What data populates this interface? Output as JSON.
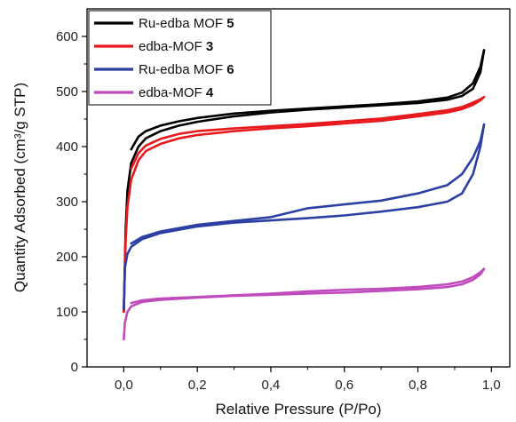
{
  "chart_data": {
    "type": "line",
    "xlabel": "Relative Pressure (P/Po)",
    "ylabel": "Quantity Adsorbed (cm³/g STP)",
    "xlim": [
      -0.1,
      1.05
    ],
    "ylim": [
      0,
      650
    ],
    "x_ticks": [
      0.0,
      0.2,
      0.4,
      0.6,
      0.8,
      1.0
    ],
    "x_tick_labels": [
      "0,0",
      "0,2",
      "0,4",
      "0,6",
      "0,8",
      "1,0"
    ],
    "y_ticks": [
      0,
      100,
      200,
      300,
      400,
      500,
      600
    ],
    "y_tick_labels": [
      "0",
      "100",
      "200",
      "300",
      "400",
      "500",
      "600"
    ],
    "legend_position": "top-left",
    "grid": false,
    "series": [
      {
        "name": "Ru-edba MOF",
        "label_number": "5",
        "color": "#000000",
        "adsorption": [
          [
            0.0,
            100
          ],
          [
            0.005,
            250
          ],
          [
            0.01,
            320
          ],
          [
            0.02,
            370
          ],
          [
            0.04,
            400
          ],
          [
            0.06,
            415
          ],
          [
            0.1,
            428
          ],
          [
            0.15,
            438
          ],
          [
            0.2,
            445
          ],
          [
            0.3,
            455
          ],
          [
            0.4,
            462
          ],
          [
            0.5,
            467
          ],
          [
            0.6,
            471
          ],
          [
            0.7,
            475
          ],
          [
            0.8,
            479
          ],
          [
            0.88,
            485
          ],
          [
            0.92,
            492
          ],
          [
            0.95,
            505
          ],
          [
            0.97,
            535
          ],
          [
            0.98,
            575
          ]
        ],
        "desorption": [
          [
            0.98,
            575
          ],
          [
            0.97,
            545
          ],
          [
            0.95,
            515
          ],
          [
            0.92,
            498
          ],
          [
            0.88,
            489
          ],
          [
            0.8,
            482
          ],
          [
            0.7,
            477
          ],
          [
            0.6,
            473
          ],
          [
            0.5,
            469
          ],
          [
            0.4,
            465
          ],
          [
            0.3,
            460
          ],
          [
            0.2,
            452
          ],
          [
            0.15,
            446
          ],
          [
            0.1,
            438
          ],
          [
            0.06,
            428
          ],
          [
            0.04,
            418
          ],
          [
            0.02,
            395
          ]
        ]
      },
      {
        "name": "edba-MOF",
        "label_number": "3",
        "color": "#e8191c",
        "adsorption": [
          [
            0.0,
            100
          ],
          [
            0.005,
            230
          ],
          [
            0.01,
            290
          ],
          [
            0.02,
            340
          ],
          [
            0.04,
            375
          ],
          [
            0.06,
            392
          ],
          [
            0.1,
            405
          ],
          [
            0.15,
            415
          ],
          [
            0.2,
            421
          ],
          [
            0.3,
            428
          ],
          [
            0.4,
            433
          ],
          [
            0.5,
            437
          ],
          [
            0.6,
            442
          ],
          [
            0.7,
            447
          ],
          [
            0.8,
            455
          ],
          [
            0.88,
            462
          ],
          [
            0.92,
            468
          ],
          [
            0.95,
            476
          ],
          [
            0.97,
            484
          ],
          [
            0.98,
            490
          ]
        ],
        "desorption": [
          [
            0.98,
            490
          ],
          [
            0.97,
            486
          ],
          [
            0.95,
            480
          ],
          [
            0.92,
            472
          ],
          [
            0.88,
            466
          ],
          [
            0.8,
            459
          ],
          [
            0.7,
            451
          ],
          [
            0.6,
            446
          ],
          [
            0.5,
            441
          ],
          [
            0.4,
            437
          ],
          [
            0.3,
            433
          ],
          [
            0.2,
            428
          ],
          [
            0.15,
            423
          ],
          [
            0.1,
            414
          ],
          [
            0.06,
            402
          ],
          [
            0.04,
            388
          ],
          [
            0.02,
            360
          ]
        ]
      },
      {
        "name": "Ru-edba MOF",
        "label_number": "6",
        "color": "#2c3fa3",
        "adsorption": [
          [
            0.0,
            105
          ],
          [
            0.003,
            180
          ],
          [
            0.01,
            205
          ],
          [
            0.02,
            218
          ],
          [
            0.05,
            232
          ],
          [
            0.1,
            243
          ],
          [
            0.2,
            255
          ],
          [
            0.3,
            262
          ],
          [
            0.4,
            266
          ],
          [
            0.5,
            270
          ],
          [
            0.6,
            275
          ],
          [
            0.7,
            282
          ],
          [
            0.8,
            290
          ],
          [
            0.88,
            300
          ],
          [
            0.92,
            315
          ],
          [
            0.95,
            350
          ],
          [
            0.97,
            400
          ],
          [
            0.98,
            440
          ]
        ],
        "desorption": [
          [
            0.98,
            440
          ],
          [
            0.97,
            410
          ],
          [
            0.95,
            380
          ],
          [
            0.92,
            350
          ],
          [
            0.88,
            330
          ],
          [
            0.8,
            315
          ],
          [
            0.7,
            302
          ],
          [
            0.6,
            295
          ],
          [
            0.5,
            288
          ],
          [
            0.45,
            280
          ],
          [
            0.4,
            272
          ],
          [
            0.3,
            265
          ],
          [
            0.2,
            258
          ],
          [
            0.1,
            246
          ],
          [
            0.05,
            236
          ],
          [
            0.02,
            224
          ]
        ]
      },
      {
        "name": "edba-MOF",
        "label_number": "4",
        "color": "#c04bbd",
        "adsorption": [
          [
            0.0,
            50
          ],
          [
            0.003,
            80
          ],
          [
            0.01,
            100
          ],
          [
            0.02,
            110
          ],
          [
            0.05,
            118
          ],
          [
            0.1,
            122
          ],
          [
            0.2,
            126
          ],
          [
            0.3,
            129
          ],
          [
            0.4,
            131
          ],
          [
            0.5,
            133
          ],
          [
            0.6,
            135
          ],
          [
            0.7,
            138
          ],
          [
            0.8,
            141
          ],
          [
            0.88,
            145
          ],
          [
            0.92,
            150
          ],
          [
            0.95,
            158
          ],
          [
            0.97,
            168
          ],
          [
            0.98,
            178
          ]
        ],
        "desorption": [
          [
            0.98,
            178
          ],
          [
            0.97,
            172
          ],
          [
            0.95,
            163
          ],
          [
            0.92,
            155
          ],
          [
            0.88,
            150
          ],
          [
            0.8,
            145
          ],
          [
            0.7,
            142
          ],
          [
            0.6,
            140
          ],
          [
            0.5,
            137
          ],
          [
            0.4,
            133
          ],
          [
            0.3,
            130
          ],
          [
            0.2,
            127
          ],
          [
            0.1,
            124
          ],
          [
            0.05,
            121
          ],
          [
            0.02,
            116
          ]
        ]
      }
    ]
  }
}
